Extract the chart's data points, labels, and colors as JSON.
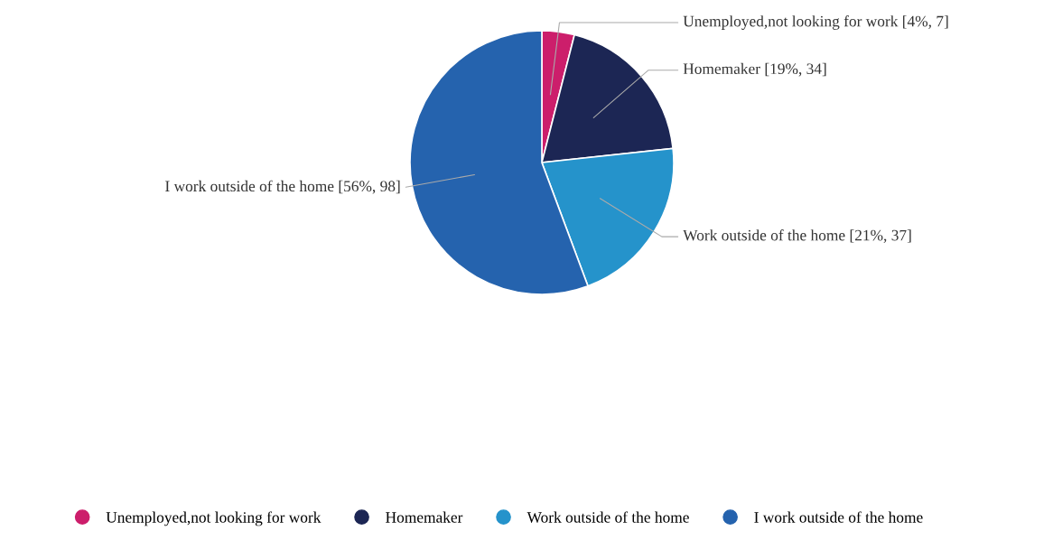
{
  "chart_data": {
    "type": "pie",
    "categories": [
      "Unemployed,not looking for work",
      "Homemaker",
      "Work outside of the home",
      "I work outside of the home"
    ],
    "values": [
      7,
      34,
      37,
      98
    ],
    "colors": [
      "#cc1e6b",
      "#1c2654",
      "#2593cb",
      "#2563ae"
    ],
    "value_labels": [
      "[4%, 7]",
      "[19%, 34]",
      "[21%, 37]",
      "[56%, 98]"
    ],
    "legend": "bottom"
  }
}
